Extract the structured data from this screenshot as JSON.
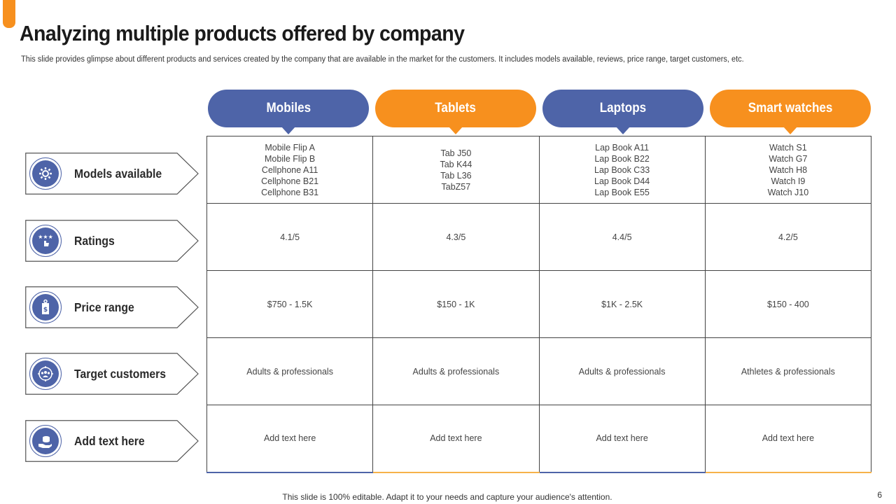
{
  "title": "Analyzing multiple products offered by company",
  "subtitle": "This slide provides glimpse about different products and services created by the company that are available in the market for the customers. It includes models available, reviews, price range, target customers, etc.",
  "columns": [
    "Mobiles",
    "Tablets",
    "Laptops",
    "Smart watches"
  ],
  "rows": [
    {
      "label": "Models available",
      "icon": "gear-network-icon",
      "cells": [
        [
          "Mobile Flip A",
          "Mobile Flip B",
          "Cellphone  A11",
          "Cellphone  B21",
          "Cellphone  B31"
        ],
        [
          "Tab J50",
          "Tab K44",
          "Tab L36",
          "TabZ57"
        ],
        [
          "Lap Book A11",
          "Lap Book B22",
          "Lap Book C33",
          "Lap Book D44",
          "Lap Book E55"
        ],
        [
          "Watch S1",
          "Watch G7",
          "Watch H8",
          "Watch I9",
          "Watch J10"
        ]
      ]
    },
    {
      "label": "Ratings",
      "icon": "rating-stars-icon",
      "cells": [
        [
          "4.1/5"
        ],
        [
          "4.3/5"
        ],
        [
          "4.4/5"
        ],
        [
          "4.2/5"
        ]
      ]
    },
    {
      "label": "Price range",
      "icon": "price-tag-icon",
      "cells": [
        [
          "$750 - 1.5K"
        ],
        [
          "$150  - 1K"
        ],
        [
          "$1K - 2.5K"
        ],
        [
          "$150 - 400"
        ]
      ]
    },
    {
      "label": "Target customers",
      "icon": "target-customers-icon",
      "cells": [
        [
          "Adults & professionals"
        ],
        [
          "Adults & professionals"
        ],
        [
          "Adults & professionals"
        ],
        [
          "Athletes & professionals"
        ]
      ]
    },
    {
      "label": "Add text here",
      "icon": "hand-money-icon",
      "cells": [
        [
          "Add text here"
        ],
        [
          "Add text here"
        ],
        [
          "Add text here"
        ],
        [
          "Add text here"
        ]
      ]
    }
  ],
  "footer": "This slide is 100% editable. Adapt it to your needs and capture your audience's attention.",
  "page_number": "6",
  "colors": {
    "blue": "#4e64a8",
    "orange": "#f7901e"
  }
}
